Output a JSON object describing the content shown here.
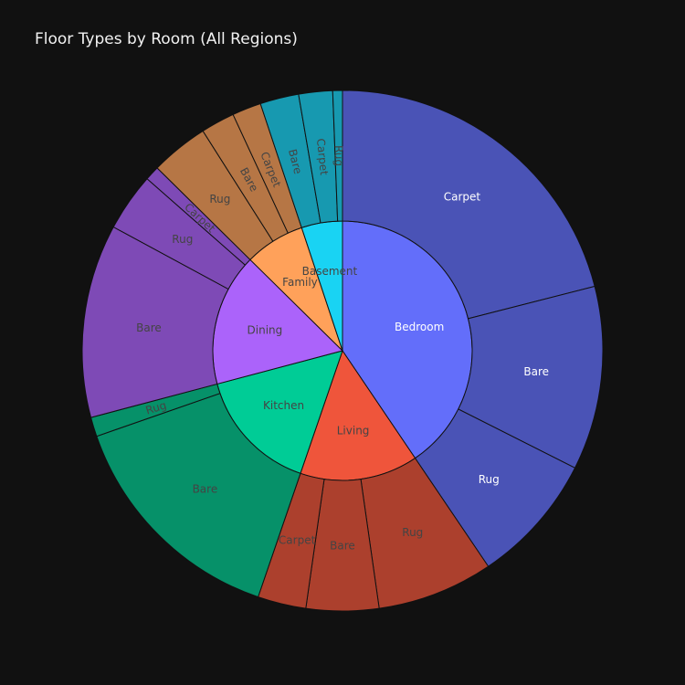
{
  "chart_data": {
    "type": "sunburst",
    "title": "Floor Types by Room (All Regions)",
    "rooms": [
      {
        "name": "Bedroom",
        "color": "#636efa",
        "outer_color": "#4a53b6",
        "label_color": "#ffffff",
        "floors": [
          {
            "name": "Carpet",
            "value": 70
          },
          {
            "name": "Bare",
            "value": 38
          },
          {
            "name": "Rug",
            "value": 27
          }
        ]
      },
      {
        "name": "Living",
        "color": "#ef553b",
        "outer_color": "#ac402d",
        "label_color": "#444444",
        "floors": [
          {
            "name": "Rug",
            "value": 24
          },
          {
            "name": "Bare",
            "value": 15
          },
          {
            "name": "Carpet",
            "value": 10
          }
        ]
      },
      {
        "name": "Kitchen",
        "color": "#00cc96",
        "outer_color": "#069169",
        "label_color": "#444444",
        "floors": [
          {
            "name": "Bare",
            "value": 48
          },
          {
            "name": "Rug",
            "value": 4
          }
        ]
      },
      {
        "name": "Dining",
        "color": "#ab63fa",
        "outer_color": "#7e4ab6",
        "label_color": "#444444",
        "floors": [
          {
            "name": "Bare",
            "value": 40
          },
          {
            "name": "Rug",
            "value": 12
          },
          {
            "name": "Carpet",
            "value": 3
          }
        ]
      },
      {
        "name": "Family",
        "color": "#ffa15a",
        "outer_color": "#b67645",
        "label_color": "#444444",
        "floors": [
          {
            "name": "Rug",
            "value": 12
          },
          {
            "name": "Bare",
            "value": 7
          },
          {
            "name": "Carpet",
            "value": 6
          }
        ]
      },
      {
        "name": "Basement",
        "color": "#19d3f3",
        "outer_color": "#1799b0",
        "label_color": "#444444",
        "floors": [
          {
            "name": "Bare",
            "value": 8
          },
          {
            "name": "Carpet",
            "value": 7
          },
          {
            "name": "Rug",
            "value": 2
          }
        ]
      }
    ]
  }
}
